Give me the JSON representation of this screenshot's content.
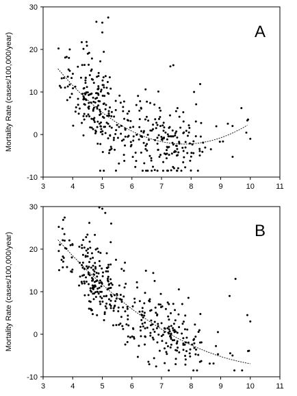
{
  "chart_data": [
    {
      "type": "scatter",
      "panel_label": "A",
      "ylabel": "Mortality Rate (cases/100,000/year)",
      "xlabel": "",
      "xlim": [
        3,
        11
      ],
      "ylim": [
        -10,
        30
      ],
      "xticks": [
        3,
        4,
        5,
        6,
        7,
        8,
        9,
        10,
        11
      ],
      "yticks": [
        -10,
        0,
        10,
        20,
        30
      ],
      "grid": false,
      "trend": {
        "kind": "quadratic",
        "x_range": [
          3.5,
          9.9
        ],
        "coef": [
          56.43,
          -15.11,
          0.9728
        ]
      },
      "point_color": "#000000",
      "points": {
        "seed": 11,
        "clusters": [
          {
            "x_min": 3.5,
            "x_max": 4.3,
            "count": 30,
            "y_sd": 4.0
          },
          {
            "x_min": 4.3,
            "x_max": 5.3,
            "count": 150,
            "y_sd": 5.0
          },
          {
            "x_min": 5.3,
            "x_max": 6.3,
            "count": 60,
            "y_sd": 5.0
          },
          {
            "x_min": 6.3,
            "x_max": 7.0,
            "count": 55,
            "y_sd": 5.0
          },
          {
            "x_min": 7.0,
            "x_max": 7.6,
            "count": 60,
            "y_sd": 4.5
          },
          {
            "x_min": 7.6,
            "x_max": 8.4,
            "count": 40,
            "y_sd": 4.0
          },
          {
            "x_min": 8.4,
            "x_max": 10.0,
            "count": 10,
            "y_sd": 3.0
          }
        ],
        "extra": [
          [
            5.0,
            26.3
          ],
          [
            4.8,
            26.5
          ],
          [
            5.2,
            27.5
          ],
          [
            9.7,
            6.2
          ],
          [
            9.9,
            3.3
          ],
          [
            10.0,
            -1.0
          ],
          [
            9.4,
            2.0
          ],
          [
            8.1,
            10.0
          ],
          [
            7.4,
            16.3
          ],
          [
            7.3,
            16.0
          ],
          [
            3.9,
            20.0
          ],
          [
            5.0,
            24.0
          ]
        ]
      }
    },
    {
      "type": "scatter",
      "panel_label": "B",
      "ylabel": "Mortality Rate (cases/100,000/year)",
      "xlabel": "",
      "xlim": [
        3,
        11
      ],
      "ylim": [
        -10,
        30
      ],
      "xticks": [
        3,
        4,
        5,
        6,
        7,
        8,
        9,
        10,
        11
      ],
      "yticks": [
        -10,
        0,
        10,
        20,
        30
      ],
      "grid": false,
      "trend": {
        "kind": "quadratic",
        "x_range": [
          3.5,
          10.0
        ],
        "coef": [
          55.56,
          -11.3,
          0.5051
        ]
      },
      "point_color": "#000000",
      "points": {
        "seed": 29,
        "clusters": [
          {
            "x_min": 3.5,
            "x_max": 4.3,
            "count": 30,
            "y_sd": 3.5
          },
          {
            "x_min": 4.3,
            "x_max": 5.3,
            "count": 150,
            "y_sd": 4.5
          },
          {
            "x_min": 5.3,
            "x_max": 6.3,
            "count": 60,
            "y_sd": 4.5
          },
          {
            "x_min": 6.3,
            "x_max": 7.0,
            "count": 55,
            "y_sd": 4.5
          },
          {
            "x_min": 7.0,
            "x_max": 7.6,
            "count": 60,
            "y_sd": 4.0
          },
          {
            "x_min": 7.6,
            "x_max": 8.4,
            "count": 40,
            "y_sd": 4.0
          },
          {
            "x_min": 8.4,
            "x_max": 10.0,
            "count": 10,
            "y_sd": 3.0
          }
        ],
        "extra": [
          [
            4.9,
            29.8
          ],
          [
            5.0,
            29.5
          ],
          [
            5.1,
            28.5
          ],
          [
            5.3,
            26.0
          ],
          [
            9.5,
            13.0
          ],
          [
            9.3,
            9.0
          ],
          [
            9.4,
            -5.0
          ],
          [
            8.3,
            -6.5
          ],
          [
            8.2,
            -8.5
          ],
          [
            9.9,
            4.5
          ],
          [
            10.0,
            3.0
          ]
        ]
      }
    }
  ]
}
